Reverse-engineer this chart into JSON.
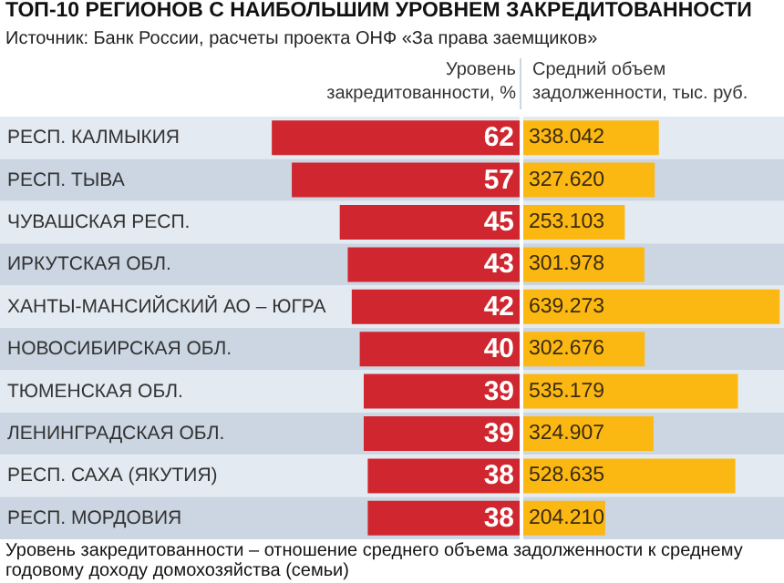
{
  "chart_data": [
    {
      "type": "bar",
      "orientation": "horizontal",
      "title": "ТОП-10 РЕГИОНОВ С НАИБОЛЬШИМ УРОВНЕМ ЗАКРЕДИТОВАННОСТИ",
      "subtitle": "Источник: Банк России, расчеты проекта ОНФ «За права заемщиков»",
      "xlabel": "Уровень закредитованности, %",
      "annotations": [
        "Уровень закредитованности – отношение среднего объема задолженности к среднему годовому доходу домохозяйства (семьи)"
      ],
      "categories": [
        "РЕСП. КАЛМЫКИЯ",
        "РЕСП. ТЫВА",
        "ЧУВАШСКАЯ РЕСП.",
        "ИРКУТСКАЯ ОБЛ.",
        "ХАНТЫ-МАНСИЙСКИЙ АО – ЮГРА",
        "НОВОСИБИРСКАЯ ОБЛ.",
        "ТЮМЕНСКАЯ ОБЛ.",
        "ЛЕНИНГРАДСКАЯ ОБЛ.",
        "РЕСП. САХА (ЯКУТИЯ)",
        "РЕСП. МОРДОВИЯ"
      ],
      "values": [
        62,
        57,
        45,
        43,
        42,
        40,
        39,
        39,
        38,
        38
      ],
      "color": "#d0262f",
      "data_labels": true,
      "xlim": [
        130,
        0
      ],
      "tick_labels": "y"
    },
    {
      "type": "bar",
      "orientation": "horizontal",
      "xlabel": "Средний объем задолженности, тыс. руб.",
      "categories": [
        null,
        null,
        null,
        null,
        null,
        null,
        null,
        null,
        null,
        null
      ],
      "values": [
        338.042,
        327.62,
        253.103,
        301.978,
        639.273,
        302.676,
        535.179,
        324.907,
        528.635,
        204.21
      ],
      "value_labels": [
        "338.042",
        "327.620",
        "253.103",
        "301.978",
        "639.273",
        "302.676",
        "535.179",
        "324.907",
        "528.635",
        "204.210"
      ],
      "color": "#fbb812",
      "xlim": [
        0,
        650
      ],
      "tick_labels": false
    }
  ]
}
